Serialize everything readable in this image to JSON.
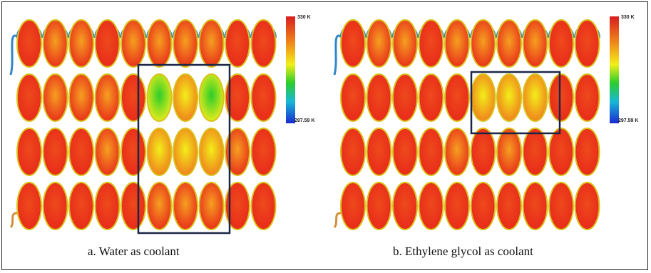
{
  "panels": [
    {
      "caption": "a. Water as coolant",
      "scale_max": "330 K",
      "scale_min": "297.59 K"
    },
    {
      "caption": "b. Ethylene glycol as coolant",
      "scale_max": "330 K",
      "scale_min": "297.59 K"
    }
  ],
  "colors": {
    "hot": "#e8281a",
    "warm": "#f07a1c",
    "yellow": "#f2ee1a",
    "green": "#2ccd2a",
    "tube_outline": "#d9c21a",
    "inlet_pipe": "#2f86c9",
    "outlet_pipe": "#d08f3a",
    "highlight_box": "#1b2647"
  }
}
